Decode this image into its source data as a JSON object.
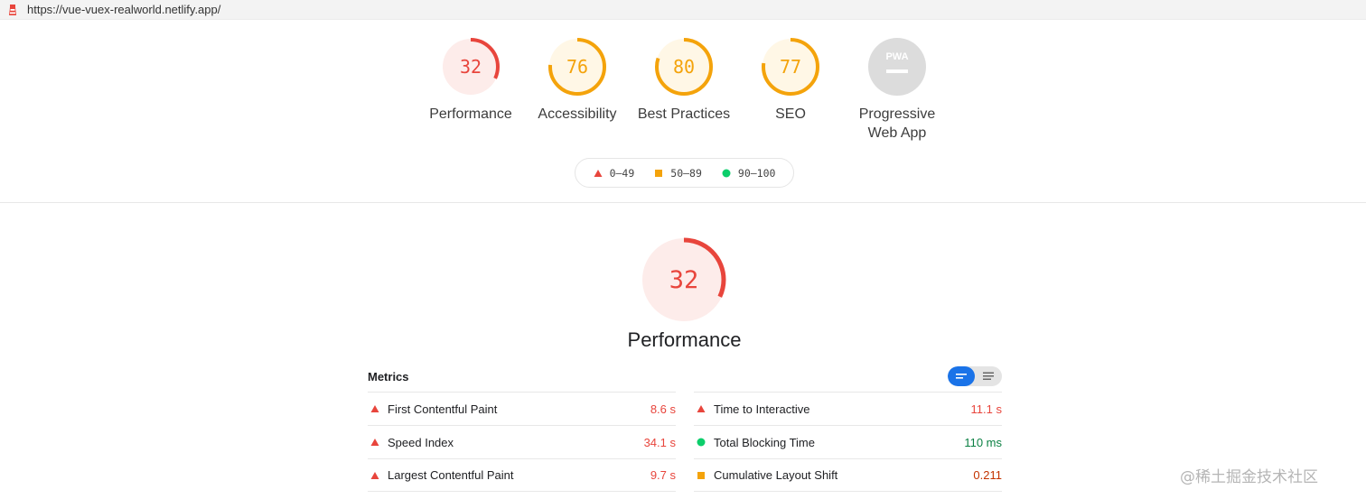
{
  "url_bar": {
    "url": "https://vue-vuex-realworld.netlify.app/"
  },
  "gauges": [
    {
      "value": "32",
      "label": "Performance",
      "score": 0.32,
      "status": "fail"
    },
    {
      "value": "76",
      "label": "Accessibility",
      "score": 0.76,
      "status": "average"
    },
    {
      "value": "80",
      "label": "Best Practices",
      "score": 0.8,
      "status": "average"
    },
    {
      "value": "77",
      "label": "SEO",
      "score": 0.77,
      "status": "average"
    },
    {
      "label_line1": "Progressive",
      "label_line2": "Web App",
      "badge": "PWA",
      "status": "na"
    }
  ],
  "legend": [
    {
      "range": "0–49",
      "icon": "triangle-icon"
    },
    {
      "range": "50–89",
      "icon": "square-icon"
    },
    {
      "range": "90–100",
      "icon": "circle-icon"
    }
  ],
  "colors": {
    "fail": "#e8453c",
    "average": "#f4a30b",
    "pass": "#0cce6b",
    "na": "#dcdcdc"
  },
  "performance": {
    "score": 0.32,
    "value": "32",
    "title": "Performance",
    "metrics_label": "Metrics",
    "metrics_left": [
      {
        "name": "First Contentful Paint",
        "value": "8.6 s",
        "status": "fail"
      },
      {
        "name": "Speed Index",
        "value": "34.1 s",
        "status": "fail"
      },
      {
        "name": "Largest Contentful Paint",
        "value": "9.7 s",
        "status": "fail"
      }
    ],
    "metrics_right": [
      {
        "name": "Time to Interactive",
        "value": "11.1 s",
        "status": "fail"
      },
      {
        "name": "Total Blocking Time",
        "value": "110 ms",
        "status": "pass"
      },
      {
        "name": "Cumulative Layout Shift",
        "value": "0.211",
        "status": "average"
      }
    ]
  },
  "watermark": "@稀土掘金技术社区"
}
